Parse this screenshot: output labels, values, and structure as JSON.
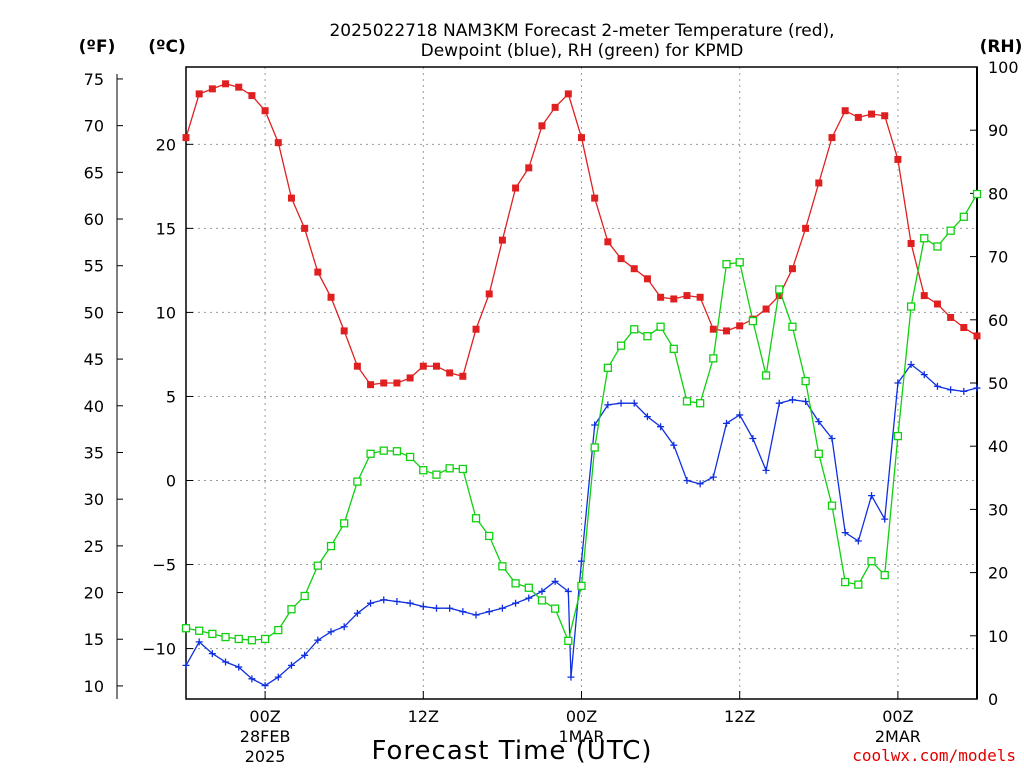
{
  "chart_data": {
    "type": "line",
    "title_line1": "2025022718 NAM3KM Forecast 2-meter Temperature (red),",
    "title_line2": "Dewpoint (blue), RH (green) for KPMD",
    "xlabel": "Forecast Time (UTC)",
    "credit": "coolwx.com/models",
    "unit_f": "(ºF)",
    "unit_c": "(ºC)",
    "unit_rh": "(RH)",
    "x_range_hours": [
      -6,
      54
    ],
    "ylim_c": [
      -13.0,
      24.6
    ],
    "ylim_rh": [
      0,
      100
    ],
    "grid": true,
    "colors": {
      "temp": "#e02020",
      "dew": "#1030e0",
      "rh": "#10d010"
    },
    "x_ticks": [
      {
        "hour": 0,
        "label": "00Z",
        "sub1": "28FEB",
        "sub2": "2025"
      },
      {
        "hour": 12,
        "label": "12Z",
        "sub1": "",
        "sub2": ""
      },
      {
        "hour": 24,
        "label": "00Z",
        "sub1": "1MAR",
        "sub2": ""
      },
      {
        "hour": 36,
        "label": "12Z",
        "sub1": "",
        "sub2": ""
      },
      {
        "hour": 48,
        "label": "00Z",
        "sub1": "2MAR",
        "sub2": ""
      }
    ],
    "y_ticks_f": [
      "10",
      "15",
      "20",
      "25",
      "30",
      "35",
      "40",
      "45",
      "50",
      "55",
      "60",
      "65",
      "70",
      "75"
    ],
    "y_ticks_c": [
      "−10",
      "−5",
      "0",
      "5",
      "10",
      "15",
      "20"
    ],
    "y_ticks_rh": [
      "0",
      "10",
      "20",
      "30",
      "40",
      "50",
      "60",
      "70",
      "80",
      "90",
      "100"
    ],
    "series": [
      {
        "name": "Temperature",
        "key": "temp",
        "marker": "filled-square",
        "points": [
          [
            -6,
            20.4
          ],
          [
            -5,
            23.0
          ],
          [
            -4,
            23.3
          ],
          [
            -3,
            23.6
          ],
          [
            -2,
            23.4
          ],
          [
            -1,
            22.9
          ],
          [
            0,
            22.0
          ],
          [
            1,
            20.1
          ],
          [
            2,
            16.8
          ],
          [
            3,
            15.0
          ],
          [
            4,
            12.4
          ],
          [
            5,
            10.9
          ],
          [
            6,
            8.9
          ],
          [
            7,
            6.8
          ],
          [
            8,
            5.7
          ],
          [
            9,
            5.8
          ],
          [
            10,
            5.8
          ],
          [
            11,
            6.1
          ],
          [
            12,
            6.8
          ],
          [
            13,
            6.8
          ],
          [
            14,
            6.4
          ],
          [
            15,
            6.2
          ],
          [
            16,
            9.0
          ],
          [
            17,
            11.1
          ],
          [
            18,
            14.3
          ],
          [
            19,
            17.4
          ],
          [
            20,
            18.6
          ],
          [
            21,
            21.1
          ],
          [
            22,
            22.2
          ],
          [
            23,
            23.0
          ],
          [
            24,
            20.4
          ],
          [
            25,
            16.8
          ],
          [
            26,
            14.2
          ],
          [
            27,
            13.2
          ],
          [
            28,
            12.6
          ],
          [
            29,
            12.0
          ],
          [
            30,
            10.9
          ],
          [
            31,
            10.8
          ],
          [
            32,
            11.0
          ],
          [
            33,
            10.9
          ],
          [
            34,
            9.0
          ],
          [
            35,
            8.9
          ],
          [
            36,
            9.2
          ],
          [
            37,
            9.6
          ],
          [
            38,
            10.2
          ],
          [
            39,
            11.0
          ],
          [
            40,
            12.6
          ],
          [
            41,
            15.0
          ],
          [
            42,
            17.7
          ],
          [
            43,
            20.4
          ],
          [
            44,
            22.0
          ],
          [
            45,
            21.6
          ],
          [
            46,
            21.8
          ],
          [
            47,
            21.7
          ],
          [
            48,
            19.1
          ],
          [
            49,
            14.1
          ],
          [
            50,
            11.0
          ],
          [
            51,
            10.5
          ],
          [
            52,
            9.7
          ],
          [
            53,
            9.1
          ],
          [
            54,
            8.6
          ]
        ]
      },
      {
        "name": "Dewpoint",
        "key": "dew",
        "marker": "plus",
        "points": [
          [
            -6,
            -11.0
          ],
          [
            -5,
            -9.6
          ],
          [
            -4,
            -10.3
          ],
          [
            -3,
            -10.8
          ],
          [
            -2,
            -11.1
          ],
          [
            -1,
            -11.8
          ],
          [
            0,
            -12.2
          ],
          [
            1,
            -11.7
          ],
          [
            2,
            -11.0
          ],
          [
            3,
            -10.4
          ],
          [
            4,
            -9.5
          ],
          [
            5,
            -9.0
          ],
          [
            6,
            -8.7
          ],
          [
            7,
            -7.9
          ],
          [
            8,
            -7.3
          ],
          [
            9,
            -7.1
          ],
          [
            10,
            -7.2
          ],
          [
            11,
            -7.3
          ],
          [
            12,
            -7.5
          ],
          [
            13,
            -7.6
          ],
          [
            14,
            -7.6
          ],
          [
            15,
            -7.8
          ],
          [
            16,
            -8.0
          ],
          [
            17,
            -7.8
          ],
          [
            18,
            -7.6
          ],
          [
            19,
            -7.3
          ],
          [
            20,
            -7.0
          ],
          [
            21,
            -6.6
          ],
          [
            22,
            -6.0
          ],
          [
            23,
            -6.6
          ],
          [
            23.2,
            -11.7
          ],
          [
            24,
            -4.8
          ],
          [
            25,
            3.3
          ],
          [
            26,
            4.5
          ],
          [
            27,
            4.6
          ],
          [
            28,
            4.6
          ],
          [
            29,
            3.8
          ],
          [
            30,
            3.2
          ],
          [
            31,
            2.1
          ],
          [
            32,
            0.0
          ],
          [
            33,
            -0.2
          ],
          [
            34,
            0.2
          ],
          [
            35,
            3.4
          ],
          [
            36,
            3.9
          ],
          [
            37,
            2.5
          ],
          [
            38,
            0.6
          ],
          [
            39,
            4.6
          ],
          [
            40,
            4.8
          ],
          [
            41,
            4.7
          ],
          [
            42,
            3.5
          ],
          [
            43,
            2.5
          ],
          [
            44,
            -3.1
          ],
          [
            45,
            -3.6
          ],
          [
            46,
            -0.9
          ],
          [
            47,
            -2.3
          ],
          [
            48,
            5.8
          ],
          [
            49,
            6.9
          ],
          [
            50,
            6.3
          ],
          [
            51,
            5.6
          ],
          [
            52,
            5.4
          ],
          [
            53,
            5.3
          ],
          [
            54,
            5.5
          ]
        ]
      },
      {
        "name": "Relative Humidity",
        "key": "rh",
        "marker": "open-square",
        "points": [
          [
            -6,
            11.2
          ],
          [
            -5,
            10.8
          ],
          [
            -4,
            10.3
          ],
          [
            -3,
            9.8
          ],
          [
            -2,
            9.5
          ],
          [
            -1,
            9.3
          ],
          [
            0,
            9.5
          ],
          [
            1,
            10.9
          ],
          [
            2,
            14.2
          ],
          [
            3,
            16.3
          ],
          [
            4,
            21.1
          ],
          [
            5,
            24.2
          ],
          [
            6,
            27.8
          ],
          [
            7,
            34.4
          ],
          [
            8,
            38.8
          ],
          [
            9,
            39.3
          ],
          [
            10,
            39.2
          ],
          [
            11,
            38.3
          ],
          [
            12,
            36.2
          ],
          [
            13,
            35.5
          ],
          [
            14,
            36.5
          ],
          [
            15,
            36.4
          ],
          [
            16,
            28.6
          ],
          [
            17,
            25.8
          ],
          [
            18,
            21.0
          ],
          [
            19,
            18.3
          ],
          [
            20,
            17.6
          ],
          [
            21,
            15.6
          ],
          [
            22,
            14.3
          ],
          [
            23,
            9.2
          ],
          [
            24,
            17.9
          ],
          [
            25,
            39.8
          ],
          [
            26,
            52.4
          ],
          [
            27,
            55.9
          ],
          [
            28,
            58.5
          ],
          [
            29,
            57.4
          ],
          [
            30,
            58.9
          ],
          [
            31,
            55.4
          ],
          [
            32,
            47.1
          ],
          [
            33,
            46.8
          ],
          [
            34,
            53.9
          ],
          [
            35,
            68.8
          ],
          [
            36,
            69.1
          ],
          [
            37,
            59.8
          ],
          [
            38,
            51.2
          ],
          [
            39,
            64.8
          ],
          [
            40,
            58.9
          ],
          [
            41,
            50.3
          ],
          [
            42,
            38.8
          ],
          [
            43,
            30.6
          ],
          [
            44,
            18.5
          ],
          [
            45,
            18.1
          ],
          [
            46,
            21.8
          ],
          [
            47,
            19.6
          ],
          [
            48,
            41.6
          ],
          [
            49,
            62.1
          ],
          [
            50,
            72.9
          ],
          [
            51,
            71.6
          ],
          [
            52,
            74.1
          ],
          [
            53,
            76.3
          ],
          [
            54,
            79.9
          ]
        ]
      }
    ]
  }
}
